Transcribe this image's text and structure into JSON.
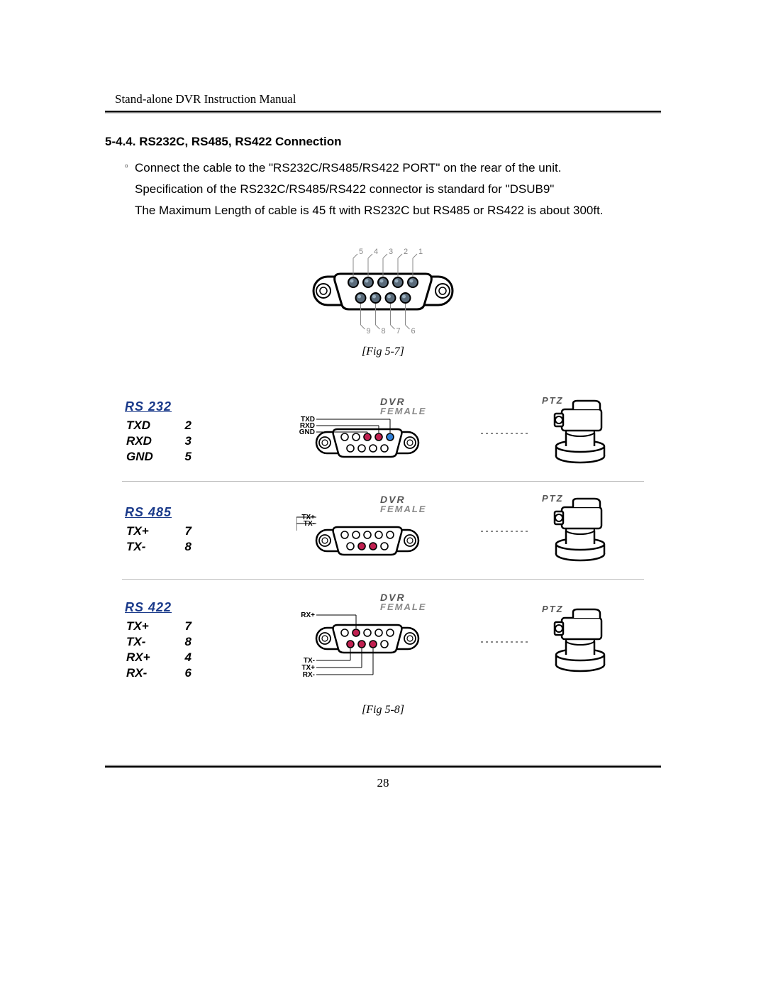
{
  "header": {
    "title": "Stand-alone DVR Instruction Manual"
  },
  "section": {
    "heading": "5-4.4. RS232C, RS485, RS422 Connection",
    "bullet": "▫",
    "line1": "Connect the cable to the \"RS232C/RS485/RS422 PORT\" on the rear of the unit.",
    "line2": "Specification of the RS232C/RS485/RS422 connector is standard for \"DSUB9\"",
    "line3": "The Maximum Length of cable is 45 ft with RS232C but RS485 or RS422 is about 300ft."
  },
  "fig7": {
    "caption": "[Fig 5-7]",
    "top_row_pins": [
      "5",
      "4",
      "3",
      "2",
      "1"
    ],
    "bottom_row_pins": [
      "9",
      "8",
      "7",
      "6"
    ],
    "colors": {
      "shell_stroke": "#000000",
      "shell_fill": "#ffffff",
      "pin_fill": "#5a6b7a",
      "pin_highlight": "#9ab0c0",
      "leader": "#888888",
      "text": "#888888"
    }
  },
  "fig8": {
    "caption": "[Fig 5-8]",
    "dvr_label": "DVR",
    "female_label": "FEMALE",
    "ptz_label": "PTZ",
    "protocols": [
      {
        "name": "RS 232",
        "pins": [
          {
            "sig": "TXD",
            "num": "2"
          },
          {
            "sig": "RXD",
            "num": "3"
          },
          {
            "sig": "GND",
            "num": "5"
          }
        ],
        "signal_labels": [
          "TXD",
          "RXD",
          "GND"
        ],
        "top_pin_colors": [
          "#ffffff",
          "#ffffff",
          "#c02050",
          "#c02050",
          "#3080d8"
        ],
        "bottom_pin_colors": [
          "#ffffff",
          "#ffffff",
          "#ffffff",
          "#ffffff"
        ],
        "bottom_signal_labels": []
      },
      {
        "name": "RS 485",
        "pins": [
          {
            "sig": "TX+",
            "num": "7"
          },
          {
            "sig": "TX-",
            "num": "8"
          }
        ],
        "signal_labels": [
          "TX+",
          "TX-"
        ],
        "top_pin_colors": [
          "#ffffff",
          "#ffffff",
          "#ffffff",
          "#ffffff",
          "#ffffff"
        ],
        "bottom_pin_colors": [
          "#ffffff",
          "#c02050",
          "#c02050",
          "#ffffff"
        ],
        "bottom_signal_labels": []
      },
      {
        "name": "RS 422",
        "pins": [
          {
            "sig": "TX+",
            "num": "7"
          },
          {
            "sig": "TX-",
            "num": "8"
          },
          {
            "sig": "RX+",
            "num": "4"
          },
          {
            "sig": "RX-",
            "num": "6"
          }
        ],
        "signal_labels": [
          "RX+"
        ],
        "top_pin_colors": [
          "#ffffff",
          "#c02050",
          "#ffffff",
          "#ffffff",
          "#ffffff"
        ],
        "bottom_pin_colors": [
          "#c02050",
          "#c02050",
          "#c02050",
          "#ffffff"
        ],
        "bottom_signal_labels": [
          "TX-",
          "TX+",
          "RX-"
        ]
      }
    ],
    "colors": {
      "shell_stroke": "#000000",
      "dashed": "#888888",
      "ptz_stroke": "#000000"
    }
  },
  "pageNumber": "28"
}
